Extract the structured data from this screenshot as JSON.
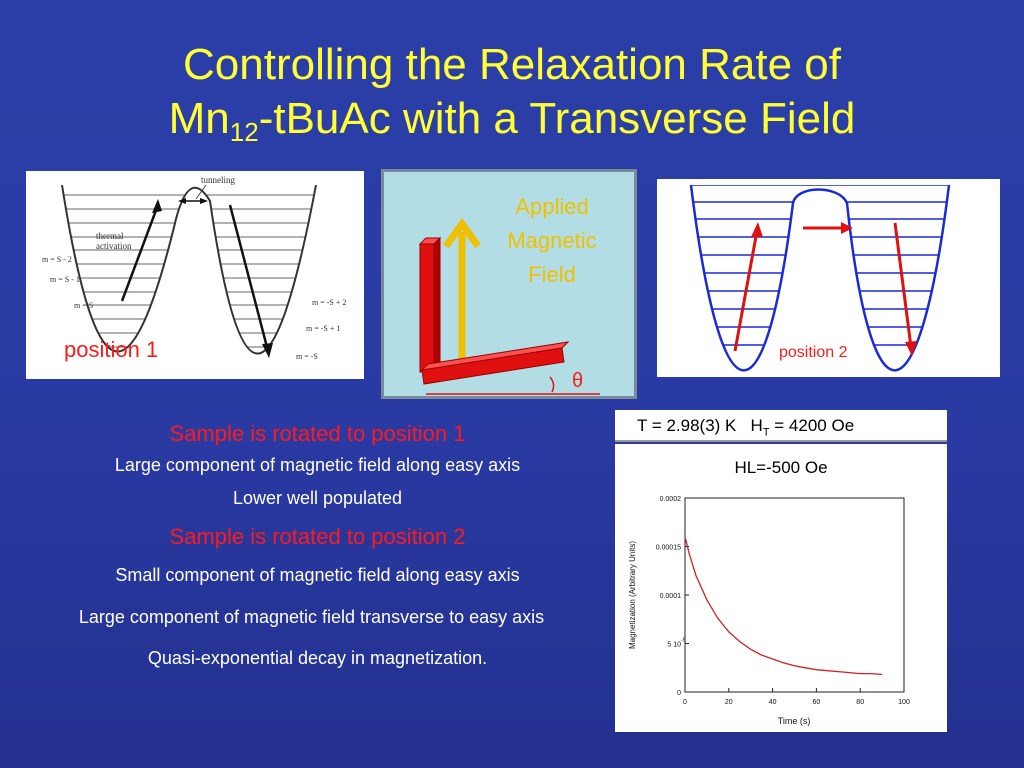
{
  "title": {
    "line1": "Controlling the Relaxation Rate of",
    "line2_pre": "Mn",
    "line2_sub": "12",
    "line2_post": "-tBuAc with a Transverse Field"
  },
  "fig1": {
    "tunneling": "tunneling",
    "thermal1": "thermal",
    "thermal2": "activation",
    "left_levels": [
      "m = S - 2",
      "m = S - 1",
      "m = S"
    ],
    "right_levels": [
      "m = -S + 2",
      "m = -S + 1",
      "m = -S"
    ],
    "position_label": "position 1"
  },
  "fig2": {
    "applied_lines": [
      "Applied",
      "Magnetic",
      "Field"
    ],
    "theta": "θ"
  },
  "fig3": {
    "position_label": "position 2"
  },
  "text": {
    "header1": "Sample is rotated to position 1",
    "b1": "Large component of magnetic field along easy axis",
    "b2": "Lower well populated",
    "header2": "Sample is rotated to position 2",
    "b3": "Small component of magnetic field along easy axis",
    "b4": "Large component of magnetic field transverse to easy axis",
    "b5": "Quasi-exponential decay in magnetization."
  },
  "info": {
    "t": "T = 2.98(3) K   H",
    "t_sub": "T",
    "t_post": " = 4200 Oe",
    "hl": "HL=-500 Oe"
  },
  "chart_data": {
    "type": "line",
    "xlabel": "Time (s)",
    "ylabel": "Magnetization (Arbitrary Units)",
    "xlim": [
      0,
      100
    ],
    "ylim": [
      0,
      0.0002
    ],
    "x_ticks": [
      "0",
      "20",
      "40",
      "60",
      "80",
      "100"
    ],
    "y_ticks": [
      "0",
      "5 10",
      "0.0001",
      "0.00015",
      "0.0002"
    ],
    "y_tick_exp": "-5",
    "line_color": "#d42020",
    "series": [
      {
        "x": [
          0,
          2,
          5,
          10,
          15,
          20,
          25,
          30,
          35,
          40,
          45,
          50,
          55,
          60,
          65,
          70,
          75,
          80,
          85,
          90
        ],
        "y": [
          0.00016,
          0.000142,
          0.00012,
          9.5e-05,
          7.6e-05,
          6.2e-05,
          5.2e-05,
          4.4e-05,
          3.8e-05,
          3.4e-05,
          3e-05,
          2.7e-05,
          2.5e-05,
          2.3e-05,
          2.2e-05,
          2.1e-05,
          2e-05,
          1.9e-05,
          1.9e-05,
          1.8e-05
        ]
      }
    ]
  }
}
